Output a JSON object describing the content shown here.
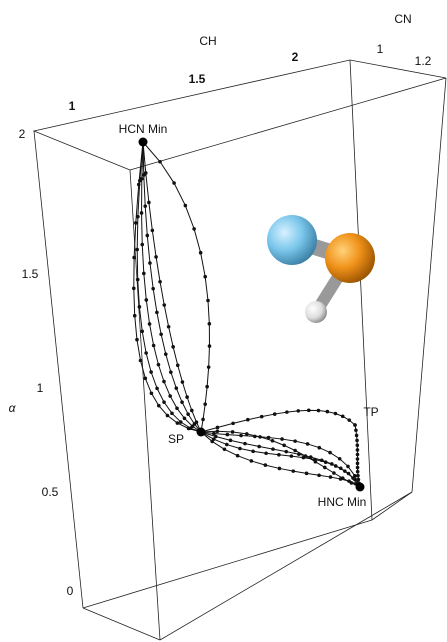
{
  "chart_data": {
    "type": "path3d",
    "x_label": "CH",
    "y_label": "CN",
    "z_label": "α",
    "xticks": [
      1,
      1.5,
      2
    ],
    "yticks": [
      1,
      1.2
    ],
    "zticks": [
      0,
      0.5,
      1,
      1.5,
      2
    ],
    "annotations": [
      "HCN Min",
      "SP",
      "TP",
      "HNC Min"
    ]
  }
}
